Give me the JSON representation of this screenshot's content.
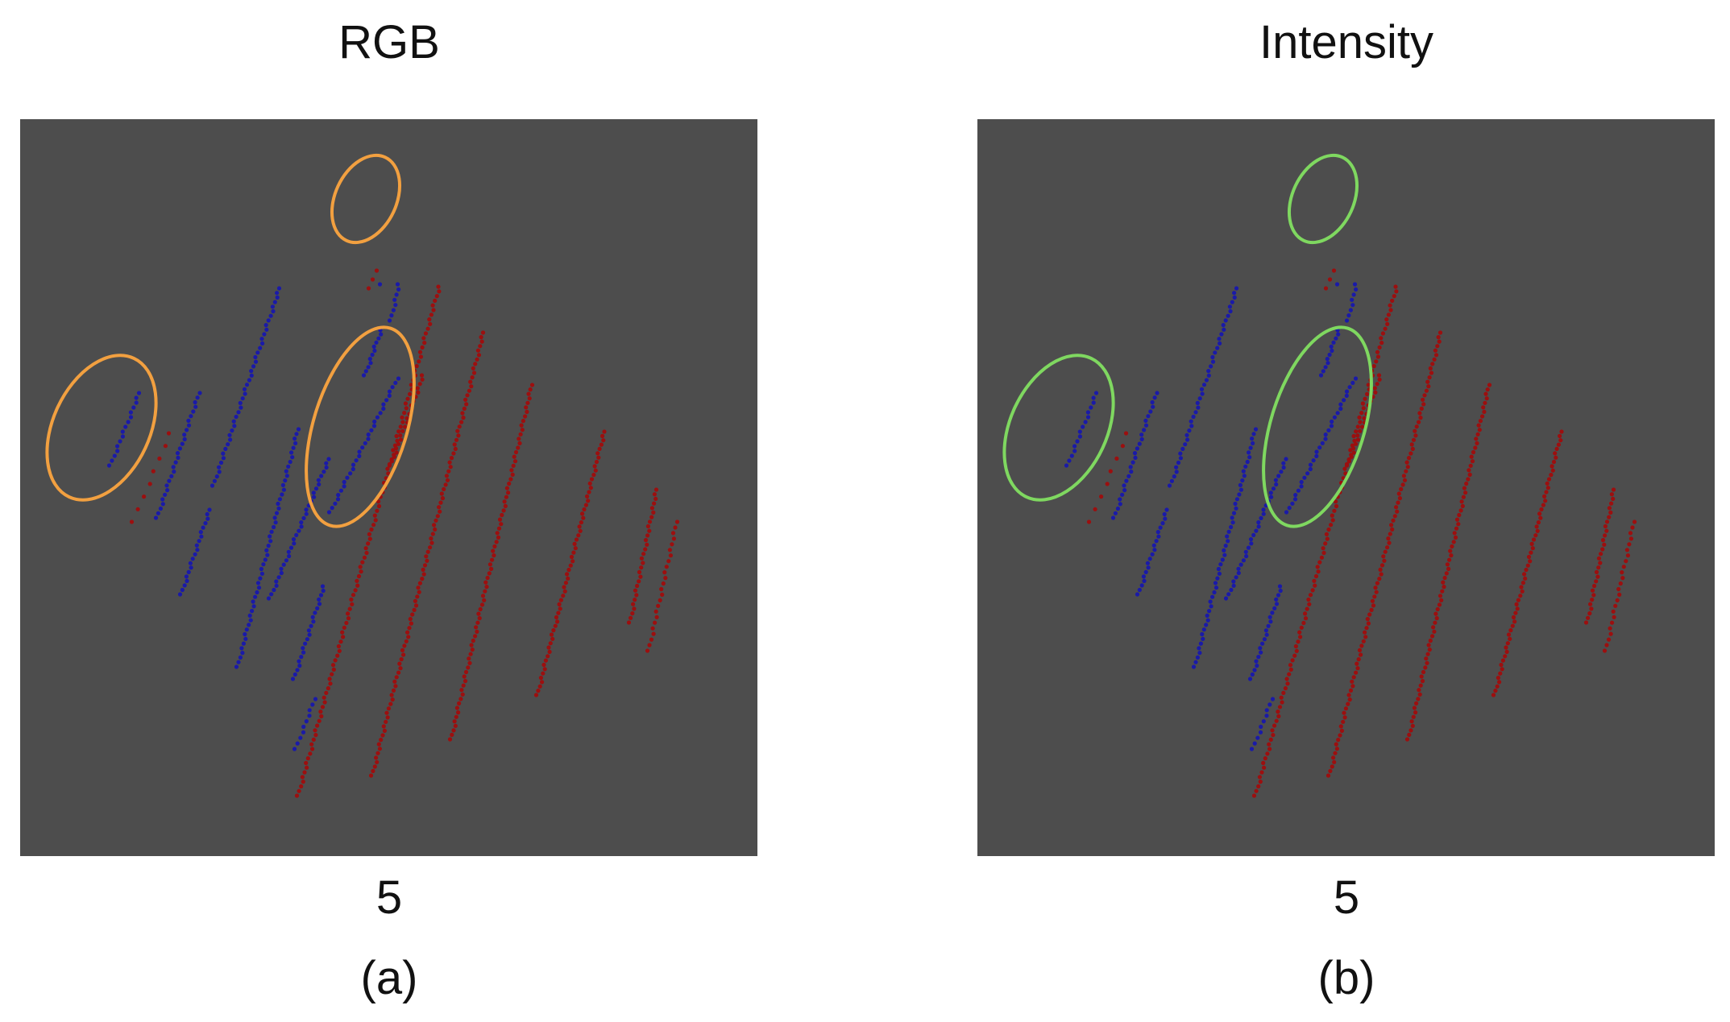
{
  "panels": [
    {
      "id": "a",
      "title": "RGB",
      "number": "5",
      "caption": "(a)",
      "highlight_color": "#f2a040"
    },
    {
      "id": "b",
      "title": "Intensity",
      "number": "5",
      "caption": "(b)",
      "highlight_color": "#7fd860"
    }
  ],
  "colors": {
    "background": "#4d4d4d",
    "blue_points": "#1a1aa8",
    "red_points": "#9c0f0f"
  }
}
